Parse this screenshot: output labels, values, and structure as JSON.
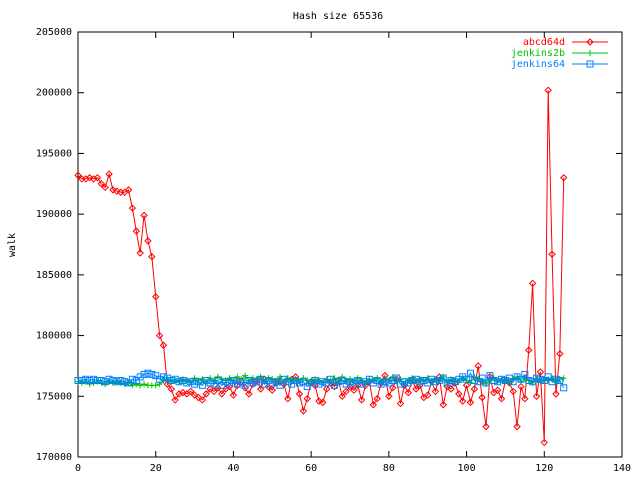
{
  "chart_data": {
    "type": "line",
    "title": "Hash size 65536",
    "ylabel": "walk",
    "x": [
      0,
      1,
      2,
      3,
      4,
      5,
      6,
      7,
      8,
      9,
      10,
      11,
      12,
      13,
      14,
      15,
      16,
      17,
      18,
      19,
      20,
      21,
      22,
      23,
      24,
      25,
      26,
      27,
      28,
      29,
      30,
      31,
      32,
      33,
      34,
      35,
      36,
      37,
      38,
      39,
      40,
      41,
      42,
      43,
      44,
      45,
      46,
      47,
      48,
      49,
      50,
      51,
      52,
      53,
      54,
      55,
      56,
      57,
      58,
      59,
      60,
      61,
      62,
      63,
      64,
      65,
      66,
      67,
      68,
      69,
      70,
      71,
      72,
      73,
      74,
      75,
      76,
      77,
      78,
      79,
      80,
      81,
      82,
      83,
      84,
      85,
      86,
      87,
      88,
      89,
      90,
      91,
      92,
      93,
      94,
      95,
      96,
      97,
      98,
      99,
      100,
      101,
      102,
      103,
      104,
      105,
      106,
      107,
      108,
      109,
      110,
      111,
      112,
      113,
      114,
      115,
      116,
      117,
      118,
      119,
      120,
      121,
      122,
      123,
      124,
      125
    ],
    "series": [
      {
        "name": "abcd64d",
        "color": "#ff0000",
        "marker": "diamond",
        "values": [
          193200,
          192900,
          192900,
          193000,
          192900,
          193000,
          192500,
          192200,
          193300,
          192000,
          191900,
          191800,
          191800,
          192000,
          190500,
          188600,
          186800,
          189900,
          187800,
          186500,
          183200,
          180000,
          179200,
          176000,
          175600,
          174700,
          175200,
          175300,
          175200,
          175400,
          175100,
          174900,
          174700,
          175200,
          175600,
          175400,
          175700,
          175200,
          175600,
          175800,
          175100,
          175900,
          176200,
          175700,
          175200,
          176000,
          176300,
          175600,
          176400,
          175800,
          175500,
          176100,
          176300,
          176000,
          174800,
          176400,
          176600,
          175200,
          173800,
          174800,
          176200,
          175900,
          174600,
          174500,
          175600,
          176100,
          175800,
          176300,
          175000,
          175400,
          175800,
          175500,
          175900,
          174700,
          175900,
          176200,
          174300,
          174800,
          176100,
          176700,
          175000,
          175700,
          176400,
          174400,
          175900,
          175300,
          176300,
          175600,
          175900,
          174900,
          175100,
          176200,
          175400,
          176600,
          174300,
          175800,
          175600,
          176100,
          175200,
          174600,
          175900,
          174500,
          175600,
          177500,
          174900,
          172500,
          176600,
          175300,
          175500,
          174800,
          176300,
          176100,
          175400,
          172500,
          175800,
          174800,
          178800,
          184300,
          175000,
          177000,
          171200,
          200200,
          186700,
          175200,
          178500,
          193000
        ]
      },
      {
        "name": "jenkins2b",
        "color": "#00c000",
        "marker": "plus",
        "values": [
          176200,
          176100,
          176200,
          176000,
          176100,
          176200,
          176100,
          176000,
          176200,
          176100,
          176200,
          176100,
          176000,
          176100,
          175900,
          176000,
          175900,
          176000,
          175900,
          175900,
          175900,
          176000,
          176300,
          176400,
          176200,
          176300,
          176200,
          176400,
          176300,
          176200,
          176500,
          176300,
          176400,
          176200,
          176500,
          176300,
          176600,
          176400,
          176300,
          176500,
          176300,
          176600,
          176400,
          176700,
          176300,
          176500,
          176400,
          176600,
          176200,
          176500,
          176400,
          176300,
          176600,
          176200,
          176500,
          176300,
          176400,
          176200,
          176500,
          176300,
          176200,
          176400,
          176300,
          176100,
          176400,
          176300,
          176500,
          176200,
          176600,
          176300,
          176400,
          176200,
          176500,
          176300,
          176100,
          176400,
          176300,
          176500,
          176200,
          176400,
          176300,
          176600,
          176200,
          176400,
          176000,
          176300,
          176500,
          176200,
          176400,
          176300,
          176500,
          176200,
          176400,
          176300,
          176600,
          176100,
          176400,
          176300,
          176200,
          176500,
          176300,
          176100,
          176600,
          176400,
          176200,
          176000,
          176300,
          176500,
          176200,
          176400,
          176300,
          176100,
          176400,
          176600,
          176200,
          176500,
          176300,
          176100,
          176400,
          176200,
          176400,
          176300,
          176500,
          176200,
          176400,
          176500
        ]
      },
      {
        "name": "jenkins64",
        "color": "#0080ff",
        "marker": "square",
        "values": [
          176300,
          176300,
          176400,
          176300,
          176400,
          176300,
          176300,
          176200,
          176400,
          176300,
          176200,
          176300,
          176200,
          176100,
          176400,
          176300,
          176600,
          176800,
          176900,
          176800,
          176700,
          176400,
          176600,
          176500,
          176300,
          176400,
          176200,
          176300,
          176100,
          176200,
          176000,
          176200,
          175900,
          176300,
          176100,
          176000,
          176300,
          175900,
          176200,
          176100,
          176300,
          176000,
          176200,
          175900,
          176300,
          176100,
          176200,
          176400,
          176000,
          176300,
          176100,
          176200,
          175900,
          176400,
          176200,
          176000,
          176300,
          176100,
          176200,
          175800,
          176100,
          176300,
          176000,
          176200,
          176100,
          176400,
          175900,
          176200,
          176300,
          176000,
          176200,
          176100,
          176300,
          176000,
          176200,
          176400,
          176100,
          176300,
          176000,
          176200,
          176100,
          176300,
          176500,
          176000,
          176200,
          176100,
          176300,
          176400,
          176200,
          176300,
          176100,
          176400,
          176200,
          176300,
          176500,
          176100,
          176300,
          176200,
          176400,
          176600,
          176400,
          176900,
          176300,
          176200,
          176500,
          176100,
          176700,
          176300,
          176200,
          176400,
          176300,
          176500,
          176200,
          176600,
          176400,
          176800,
          176300,
          176200,
          176500,
          176400,
          176300,
          176600,
          176200,
          176400,
          176300,
          175700
        ]
      }
    ],
    "xlim": [
      0,
      140
    ],
    "xticks": [
      0,
      20,
      40,
      60,
      80,
      100,
      120,
      140
    ],
    "ylim": [
      170000,
      205000
    ],
    "yticks": [
      170000,
      175000,
      180000,
      185000,
      190000,
      195000,
      200000,
      205000
    ],
    "legend": "top-right"
  }
}
